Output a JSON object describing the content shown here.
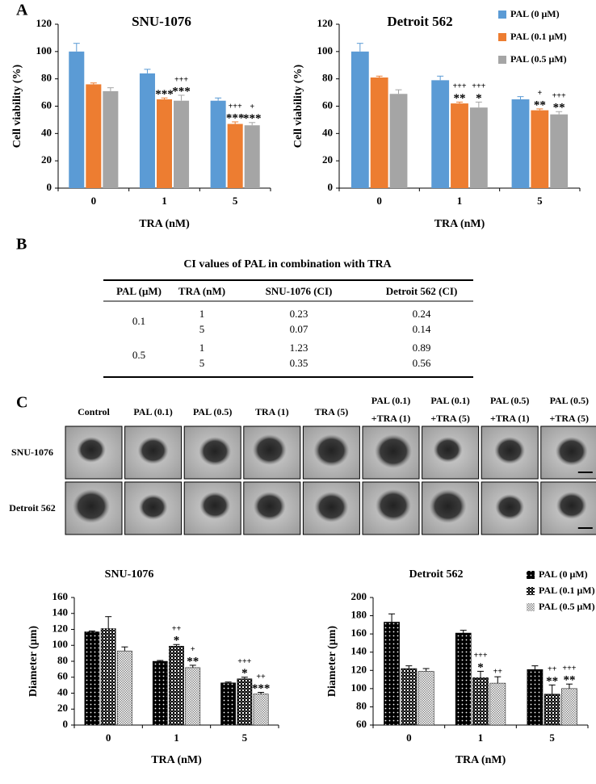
{
  "panels": [
    "A",
    "B",
    "C"
  ],
  "chart_data": [
    {
      "type": "bar",
      "title": "SNU-1076",
      "x_label": "TRA (nM)",
      "y_label": "Cell viability (%)",
      "categories": [
        "0",
        "1",
        "5"
      ],
      "ylim": [
        0,
        120
      ],
      "yticks": [
        0,
        20,
        40,
        60,
        80,
        100,
        120
      ],
      "series": [
        {
          "color": "#5b9bd5",
          "values": [
            100,
            84,
            64
          ],
          "errors": [
            6,
            3,
            2
          ],
          "stars": [
            null,
            null,
            null
          ],
          "plus": [
            null,
            null,
            null
          ]
        },
        {
          "color": "#ed7d31",
          "values": [
            76,
            65,
            47
          ],
          "errors": [
            1,
            1,
            1.5
          ],
          "stars": [
            null,
            "***",
            "***"
          ],
          "plus": [
            null,
            null,
            "+++"
          ]
        },
        {
          "color": "#a5a5a5",
          "values": [
            71,
            64,
            46
          ],
          "errors": [
            2.5,
            4,
            2
          ],
          "stars": [
            null,
            "***",
            "***"
          ],
          "plus": [
            null,
            "+++",
            "+"
          ]
        }
      ]
    },
    {
      "type": "bar",
      "title": "Detroit 562",
      "x_label": "TRA (nM)",
      "y_label": "Cell viability (%)",
      "categories": [
        "0",
        "1",
        "5"
      ],
      "ylim": [
        0,
        120
      ],
      "yticks": [
        0,
        20,
        40,
        60,
        80,
        100,
        120
      ],
      "legend": "upper right",
      "series": [
        {
          "name": "PAL (0 μM)",
          "color": "#5b9bd5",
          "values": [
            100,
            79,
            65
          ],
          "errors": [
            6,
            3,
            2
          ],
          "stars": [
            null,
            null,
            null
          ],
          "plus": [
            null,
            null,
            null
          ]
        },
        {
          "name": "PAL (0.1 μM)",
          "color": "#ed7d31",
          "values": [
            81,
            62,
            57
          ],
          "errors": [
            1,
            1,
            1
          ],
          "stars": [
            null,
            "**",
            "**"
          ],
          "plus": [
            null,
            "+++",
            "+"
          ]
        },
        {
          "name": "PAL (0.5 μM)",
          "color": "#a5a5a5",
          "values": [
            69,
            59,
            54
          ],
          "errors": [
            3,
            4,
            2
          ],
          "stars": [
            null,
            "*",
            "**"
          ],
          "plus": [
            null,
            "+++",
            "+++"
          ]
        }
      ]
    },
    {
      "type": "bar",
      "title": "SNU-1076",
      "x_label": "TRA (nM)",
      "y_label": "Diameter (μm)",
      "categories": [
        "0",
        "1",
        "5"
      ],
      "ylim": [
        0,
        160
      ],
      "yticks": [
        0,
        20,
        40,
        60,
        80,
        100,
        120,
        140,
        160
      ],
      "series": [
        {
          "color": "#000000",
          "pattern": "dots",
          "values": [
            117,
            80,
            53
          ],
          "errors": [
            1,
            1,
            1
          ],
          "stars": [
            null,
            null,
            null
          ],
          "plus": [
            null,
            null,
            null
          ]
        },
        {
          "color": "#000000",
          "pattern": "checker",
          "values": [
            121,
            99,
            58
          ],
          "errors": [
            15,
            2,
            2
          ],
          "stars": [
            null,
            "*",
            "*"
          ],
          "plus": [
            null,
            "++",
            "+++"
          ]
        },
        {
          "color": "#000000",
          "pattern": "mesh",
          "values": [
            93,
            72,
            39
          ],
          "errors": [
            5,
            3,
            2
          ],
          "stars": [
            null,
            "**",
            "***"
          ],
          "plus": [
            null,
            "+",
            "++"
          ]
        }
      ]
    },
    {
      "type": "bar",
      "title": "Detroit 562",
      "x_label": "TRA (nM)",
      "y_label": "Diameter (μm)",
      "categories": [
        "0",
        "1",
        "5"
      ],
      "ylim": [
        60,
        200
      ],
      "yticks": [
        60,
        80,
        100,
        120,
        140,
        160,
        180,
        200
      ],
      "legend": "upper right",
      "series": [
        {
          "name": "PAL (0 μM)",
          "color": "#000000",
          "pattern": "dots",
          "values": [
            173,
            161,
            121
          ],
          "errors": [
            9,
            3,
            4
          ],
          "stars": [
            null,
            null,
            null
          ],
          "plus": [
            null,
            null,
            null
          ]
        },
        {
          "name": "PAL (0.1 μM)",
          "color": "#000000",
          "pattern": "checker",
          "values": [
            122,
            112,
            94
          ],
          "errors": [
            3,
            7,
            10
          ],
          "stars": [
            null,
            "*",
            "**"
          ],
          "plus": [
            null,
            "+++",
            "++"
          ]
        },
        {
          "name": "PAL (0.5 μM)",
          "color": "#000000",
          "pattern": "mesh",
          "values": [
            119,
            106,
            100
          ],
          "errors": [
            3,
            7,
            5
          ],
          "stars": [
            null,
            null,
            "**"
          ],
          "plus": [
            null,
            "++",
            "+++"
          ]
        }
      ]
    }
  ],
  "table": {
    "title": "CI values of PAL in combination with TRA",
    "header": [
      "PAL (μM)",
      "TRA (nM)",
      "SNU-1076 (CI)",
      "Detroit 562 (CI)"
    ],
    "groups": [
      {
        "pal": "0.1",
        "rows": [
          [
            "1",
            "0.23",
            "0.24"
          ],
          [
            "5",
            "0.07",
            "0.14"
          ]
        ]
      },
      {
        "pal": "0.5",
        "rows": [
          [
            "1",
            "1.23",
            "0.89"
          ],
          [
            "5",
            "0.35",
            "0.56"
          ]
        ]
      }
    ]
  },
  "images": {
    "columns": [
      [
        "Control"
      ],
      [
        "PAL (0.1)"
      ],
      [
        "PAL (0.5)"
      ],
      [
        "TRA (1)"
      ],
      [
        "TRA (5)"
      ],
      [
        "PAL (0.1)",
        "+TRA (1)"
      ],
      [
        "PAL (0.1)",
        "+TRA (5)"
      ],
      [
        "PAL (0.5)",
        "+TRA (1)"
      ],
      [
        "PAL (0.5)",
        "+TRA (5)"
      ]
    ],
    "rows": [
      "SNU-1076",
      "Detroit 562"
    ]
  }
}
